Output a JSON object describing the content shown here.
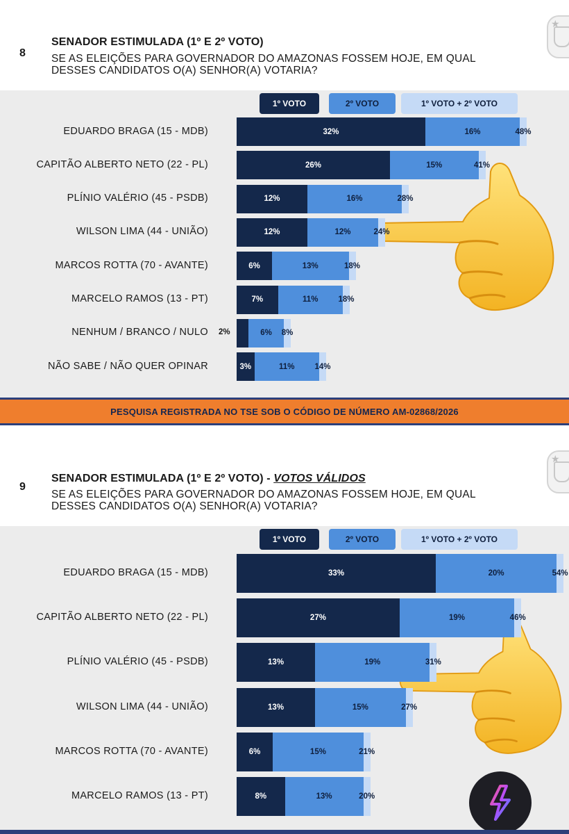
{
  "colors": {
    "first_vote": "#14284b",
    "second_vote": "#4f8fdc",
    "combined": "#c5daf6",
    "band": "#ef7e2d",
    "band_border": "#2c3f7a"
  },
  "footer_note": "PESQUISA REGISTRADA NO TSE SOB O CÓDIGO DE NÚMERO AM-02868/2026",
  "chart_data": [
    {
      "type": "bar",
      "number": "8",
      "title": "SENADOR ESTIMULADA (1º E 2º VOTO)",
      "subtitle_emphasis": "",
      "question_lines": [
        "SE AS ELEIÇÕES PARA GOVERNADOR DO AMAZONAS FOSSEM HOJE, EM QUAL",
        "DESSES CANDIDATOS O(A) SENHOR(A) VOTARIA?"
      ],
      "legend": [
        "1º VOTO",
        "2º VOTO",
        "1º VOTO + 2º VOTO"
      ],
      "categories": [
        "EDUARDO BRAGA (15 - MDB)",
        "CAPITÃO ALBERTO NETO (22 - PL)",
        "PLÍNIO VALÉRIO (45 - PSDB)",
        "WILSON LIMA (44 - UNIÃO)",
        "MARCOS ROTTA (70 - AVANTE)",
        "MARCELO RAMOS (13 - PT)",
        "NENHUM / BRANCO / NULO",
        "NÃO SABE / NÃO QUER OPINAR"
      ],
      "series": [
        {
          "name": "1º VOTO",
          "values": [
            32,
            26,
            12,
            12,
            6,
            7,
            2,
            3
          ],
          "labels": [
            "32%",
            "26%",
            "12%",
            "12%",
            "6%",
            "7%",
            "2%",
            "3%"
          ]
        },
        {
          "name": "2º VOTO",
          "values": [
            16,
            15,
            16,
            12,
            13,
            11,
            6,
            11
          ],
          "labels": [
            "16%",
            "15%",
            "16%",
            "12%",
            "13%",
            "11%",
            "6%",
            "11%"
          ]
        },
        {
          "name": "1º VOTO + 2º VOTO",
          "values": [
            48,
            41,
            28,
            24,
            18,
            18,
            8,
            14
          ],
          "labels": [
            "48%",
            "41%",
            "28%",
            "24%",
            "18%",
            "18%",
            "8%",
            "14%"
          ]
        }
      ]
    },
    {
      "type": "bar",
      "number": "9",
      "title": "SENADOR ESTIMULADA (1º E 2º VOTO) - ",
      "subtitle_emphasis": "VOTOS VÁLIDOS",
      "question_lines": [
        "SE AS ELEIÇÕES PARA GOVERNADOR DO AMAZONAS FOSSEM HOJE, EM QUAL",
        "DESSES CANDIDATOS O(A) SENHOR(A) VOTARIA?"
      ],
      "legend": [
        "1º VOTO",
        "2º VOTO",
        "1º VOTO + 2º VOTO"
      ],
      "categories": [
        "EDUARDO BRAGA (15 - MDB)",
        "CAPITÃO ALBERTO NETO (22 - PL)",
        "PLÍNIO VALÉRIO (45 - PSDB)",
        "WILSON LIMA (44 - UNIÃO)",
        "MARCOS ROTTA (70 - AVANTE)",
        "MARCELO RAMOS (13 - PT)"
      ],
      "series": [
        {
          "name": "1º VOTO",
          "values": [
            33,
            27,
            13,
            13,
            6,
            8
          ],
          "labels": [
            "33%",
            "27%",
            "13%",
            "13%",
            "6%",
            "8%"
          ]
        },
        {
          "name": "2º VOTO",
          "values": [
            20,
            19,
            19,
            15,
            15,
            13
          ],
          "labels": [
            "20%",
            "19%",
            "19%",
            "15%",
            "15%",
            "13%"
          ]
        },
        {
          "name": "1º VOTO + 2º VOTO",
          "values": [
            54,
            46,
            31,
            27,
            21,
            20
          ],
          "labels": [
            "54%",
            "46%",
            "31%",
            "27%",
            "21%",
            "20%"
          ]
        }
      ]
    }
  ],
  "icons": [
    "seal-icon",
    "pointing-hand-emoji",
    "app-logo-icon"
  ]
}
